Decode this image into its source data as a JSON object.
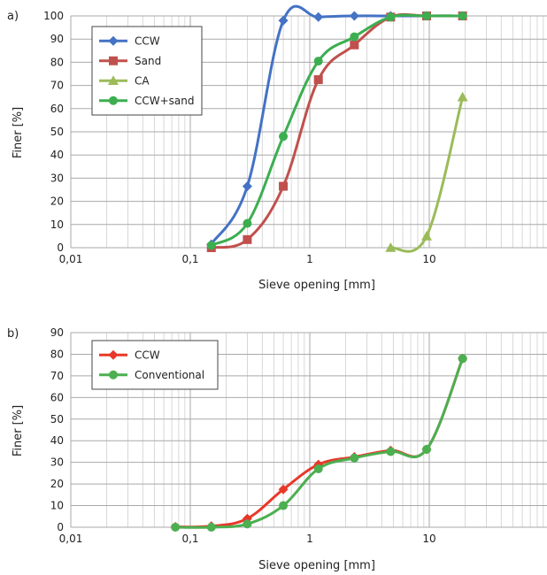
{
  "chart_data": [
    {
      "panel_label": "a)",
      "type": "line",
      "xscale": "log",
      "xlim": [
        0.01,
        100
      ],
      "ylim": [
        0,
        100
      ],
      "x_ticks": [
        0.01,
        0.1,
        1,
        10
      ],
      "x_tick_labels": [
        "0,01",
        "0,1",
        "1",
        "10"
      ],
      "y_ticks": [
        0,
        10,
        20,
        30,
        40,
        50,
        60,
        70,
        80,
        90,
        100
      ],
      "xlabel": "Sieve opening [mm]",
      "ylabel": "Finer [%]",
      "grid": true,
      "legend_position": "top-left",
      "series": [
        {
          "name": "CCW",
          "color": "#4472c4",
          "marker": "diamond",
          "x": [
            0.15,
            0.3,
            0.6,
            1.18,
            2.36,
            4.75,
            9.5,
            19
          ],
          "y": [
            1.5,
            26.5,
            98,
            99.5,
            100,
            100,
            100,
            100
          ]
        },
        {
          "name": "Sand",
          "color": "#c0504d",
          "marker": "square",
          "x": [
            0.15,
            0.3,
            0.6,
            1.18,
            2.36,
            4.75,
            9.5,
            19
          ],
          "y": [
            0,
            3.5,
            26.5,
            72.5,
            87.5,
            99.5,
            100,
            100
          ]
        },
        {
          "name": "CA",
          "color": "#9bbb59",
          "marker": "triangle",
          "x": [
            4.75,
            9.5,
            19
          ],
          "y": [
            0,
            5,
            65
          ]
        },
        {
          "name": "CCW+sand",
          "color": "#3cae50",
          "marker": "circle",
          "x": [
            0.15,
            0.3,
            0.6,
            1.18,
            2.36,
            4.75,
            9.5,
            19
          ],
          "y": [
            1,
            10.5,
            48,
            80.5,
            91,
            99.5,
            100,
            100
          ]
        }
      ]
    },
    {
      "panel_label": "b)",
      "type": "line",
      "xscale": "log",
      "xlim": [
        0.01,
        100
      ],
      "ylim": [
        0,
        90
      ],
      "x_ticks": [
        0.01,
        0.1,
        1,
        10
      ],
      "x_tick_labels": [
        "0,01",
        "0,1",
        "1",
        "10"
      ],
      "y_ticks": [
        0,
        10,
        20,
        30,
        40,
        50,
        60,
        70,
        80,
        90
      ],
      "xlabel": "Sieve opening [mm]",
      "ylabel": "Finer [%]",
      "grid": true,
      "legend_position": "top-left",
      "series": [
        {
          "name": "CCW",
          "color": "#e8382a",
          "marker": "diamond",
          "x": [
            0.075,
            0.15,
            0.3,
            0.6,
            1.18,
            2.36,
            4.75,
            9.5,
            19
          ],
          "y": [
            0.2,
            0.5,
            4,
            17.5,
            29,
            32.5,
            35.5,
            36,
            78
          ]
        },
        {
          "name": "Conventional",
          "color": "#4caf50",
          "marker": "circle",
          "x": [
            0.075,
            0.15,
            0.3,
            0.6,
            1.18,
            2.36,
            4.75,
            9.5,
            19
          ],
          "y": [
            0,
            0,
            1.5,
            10,
            27,
            32,
            35,
            36,
            78
          ]
        }
      ]
    }
  ]
}
